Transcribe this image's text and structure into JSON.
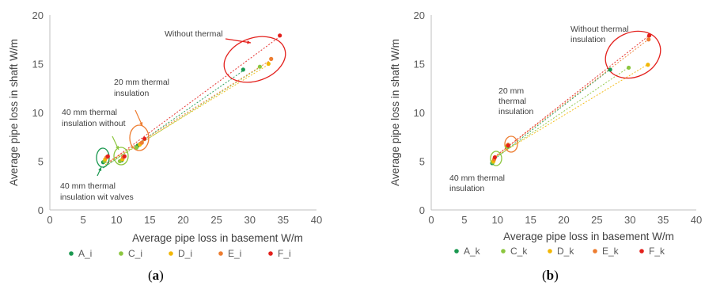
{
  "chart_data": [
    {
      "type": "scatter",
      "caption_open": "(",
      "caption_letter": "a",
      "caption_close": ")",
      "xlabel": "Average pipe loss in basement W/m",
      "ylabel": "Average pipe loss in shaft W/m",
      "xlim": [
        0,
        40
      ],
      "ylim": [
        0,
        20
      ],
      "xticks": [
        "0",
        "5",
        "10",
        "15",
        "20",
        "25",
        "30",
        "35",
        "40"
      ],
      "yticks": [
        "0",
        "5",
        "10",
        "15",
        "20"
      ],
      "grid": false,
      "legend_position": "bottom",
      "series": [
        {
          "name": "A_i",
          "color": "#1a9850",
          "x": [
            8.0,
            10.8,
            13.2,
            29.0
          ],
          "y": [
            4.9,
            5.1,
            6.6,
            14.4
          ]
        },
        {
          "name": "C_i",
          "color": "#8cc63f",
          "x": [
            8.2,
            10.5,
            13.0,
            31.5
          ],
          "y": [
            5.0,
            5.0,
            6.4,
            14.7
          ]
        },
        {
          "name": "D_i",
          "color": "#f2b705",
          "x": [
            8.3,
            10.9,
            13.5,
            32.8
          ],
          "y": [
            5.2,
            5.2,
            6.7,
            15.0
          ]
        },
        {
          "name": "E_i",
          "color": "#ed7d31",
          "x": [
            8.5,
            11.0,
            13.8,
            33.2
          ],
          "y": [
            5.4,
            5.4,
            6.9,
            15.5
          ]
        },
        {
          "name": "F_i",
          "color": "#e3201c",
          "x": [
            8.7,
            11.2,
            14.2,
            34.5
          ],
          "y": [
            5.5,
            5.5,
            7.3,
            17.9
          ]
        }
      ],
      "annotations": [
        {
          "lines": [
            "Without thermal"
          ]
        },
        {
          "lines": [
            "20 mm thermal",
            "insulation"
          ]
        },
        {
          "lines": [
            "40 mm thermal",
            "insulation without"
          ]
        },
        {
          "lines": [
            "40 mm thermal",
            "insulation wit valves"
          ]
        }
      ]
    },
    {
      "type": "scatter",
      "caption_open": "(",
      "caption_letter": "b",
      "caption_close": ")",
      "xlabel": "Average pipe loss in basement W/m",
      "ylabel": "Average pipe loss in shaft W/m",
      "xlim": [
        0,
        40
      ],
      "ylim": [
        0,
        20
      ],
      "xticks": [
        "0",
        "5",
        "10",
        "15",
        "20",
        "25",
        "30",
        "35",
        "40"
      ],
      "yticks": [
        "0",
        "5",
        "10",
        "15",
        "20"
      ],
      "grid": false,
      "legend_position": "bottom",
      "series": [
        {
          "name": "A_k",
          "color": "#1a9850",
          "x": [
            9.2,
            11.5,
            27.0
          ],
          "y": [
            4.8,
            6.5,
            14.4
          ]
        },
        {
          "name": "C_k",
          "color": "#8cc63f",
          "x": [
            9.3,
            11.4,
            29.8
          ],
          "y": [
            4.9,
            6.5,
            14.6
          ]
        },
        {
          "name": "D_k",
          "color": "#f2b705",
          "x": [
            9.4,
            11.5,
            32.7
          ],
          "y": [
            5.0,
            6.6,
            14.9
          ]
        },
        {
          "name": "E_k",
          "color": "#ed7d31",
          "x": [
            9.5,
            11.6,
            32.8
          ],
          "y": [
            5.2,
            6.7,
            17.5
          ]
        },
        {
          "name": "F_k",
          "color": "#e3201c",
          "x": [
            9.6,
            11.6,
            32.9
          ],
          "y": [
            5.4,
            6.6,
            17.9
          ]
        }
      ],
      "annotations": [
        {
          "lines": [
            "Without thermal",
            "insulation"
          ]
        },
        {
          "lines": [
            "20 mm",
            "thermal",
            "insulation"
          ]
        },
        {
          "lines": [
            "40 mm thermal",
            "insulation"
          ]
        }
      ]
    }
  ]
}
